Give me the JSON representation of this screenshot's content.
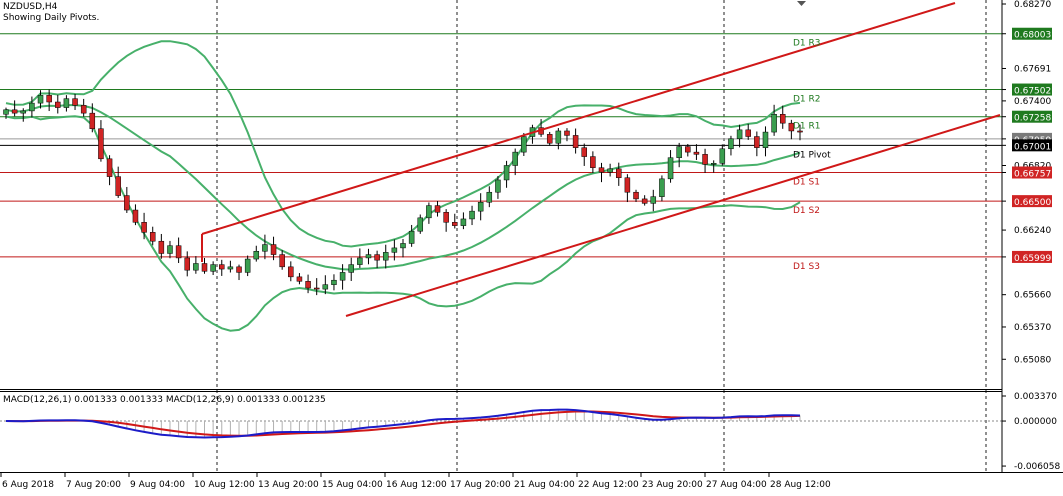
{
  "header": {
    "symbol": "NZDUSD,H4",
    "pivot_note": "Showing Daily Pivots."
  },
  "macd": {
    "label": "MACD(12,26,1) 0.001333 0.001333 MACD(12,26,9) 0.001333 0.001235"
  },
  "colors": {
    "bull": "#3a9e4f",
    "bear": "#d02424",
    "band": "#47b06a",
    "trend": "#d01818",
    "macd_main": "#1c1cc8",
    "macd_signal": "#d01818",
    "pivot": "#000000"
  },
  "chart_data": {
    "type": "candlestick",
    "y_range": [
      0.6484,
      0.6827
    ],
    "price_axis_ticks": [
      "0.68270",
      "0.68003",
      "0.67691",
      "0.67502",
      "0.67400",
      "0.67258",
      "0.67059",
      "0.67001",
      "0.66820",
      "0.66757",
      "0.66500",
      "0.66240",
      "0.65999",
      "0.65660",
      "0.65370",
      "0.65080"
    ],
    "highlighted_ticks": [
      "0.68003",
      "0.67502",
      "0.67258",
      "0.67059",
      "0.67001",
      "0.66757",
      "0.66500",
      "0.65999"
    ],
    "pivots": [
      {
        "label": "D1 R3",
        "value": 0.68003
      },
      {
        "label": "D1 R2",
        "value": 0.67502
      },
      {
        "label": "D1 R1",
        "value": 0.67258
      },
      {
        "label": "D1 Pivot",
        "value": 0.67001
      },
      {
        "label": "D1 S1",
        "value": 0.66757
      },
      {
        "label": "D1 S2",
        "value": 0.665
      },
      {
        "label": "D1 S3",
        "value": 0.65999
      }
    ],
    "time_labels": [
      "6 Aug 2018",
      "7 Aug 20:00",
      "9 Aug 04:00",
      "10 Aug 12:00",
      "13 Aug 20:00",
      "15 Aug 04:00",
      "16 Aug 12:00",
      "17 Aug 20:00",
      "21 Aug 04:00",
      "22 Aug 12:00",
      "23 Aug 20:00",
      "27 Aug 04:00",
      "28 Aug 12:00"
    ],
    "closes": [
      0.6732,
      0.6729,
      0.6731,
      0.6738,
      0.6745,
      0.6739,
      0.6734,
      0.6742,
      0.6736,
      0.6729,
      0.6715,
      0.6688,
      0.6672,
      0.6655,
      0.6642,
      0.6631,
      0.6622,
      0.6614,
      0.6603,
      0.661,
      0.6599,
      0.6588,
      0.6594,
      0.6587,
      0.6593,
      0.6589,
      0.6591,
      0.6586,
      0.6598,
      0.6605,
      0.6611,
      0.6602,
      0.6591,
      0.6582,
      0.6578,
      0.6572,
      0.6571,
      0.6575,
      0.6579,
      0.6586,
      0.6593,
      0.6599,
      0.6602,
      0.6597,
      0.6604,
      0.6608,
      0.6612,
      0.6623,
      0.6635,
      0.6646,
      0.664,
      0.6631,
      0.6628,
      0.6634,
      0.6641,
      0.6649,
      0.6658,
      0.6669,
      0.6682,
      0.6694,
      0.6708,
      0.6716,
      0.671,
      0.6702,
      0.6713,
      0.6709,
      0.6698,
      0.669,
      0.668,
      0.6676,
      0.6679,
      0.6671,
      0.6658,
      0.6652,
      0.6648,
      0.6654,
      0.667,
      0.6689,
      0.6699,
      0.6694,
      0.6692,
      0.6683,
      0.6684,
      0.6697,
      0.6706,
      0.6714,
      0.6708,
      0.6698,
      0.6712,
      0.6728,
      0.672,
      0.6713,
      0.6712
    ],
    "macd_range": [
      -0.00605,
      0.00337
    ],
    "macd_ticks": [
      "0.003370",
      "0.000000",
      "-0.006058"
    ]
  }
}
